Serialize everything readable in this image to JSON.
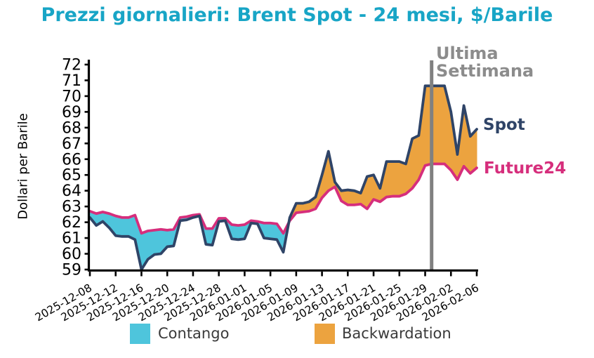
{
  "title": "Prezzi giornalieri: Brent Spot - 24 mesi, $/Barile",
  "ylabel": "Dollari per Barile",
  "annotations": {
    "vline_label_line1": "Ultima",
    "vline_label_line2": "Settimana"
  },
  "legend": {
    "contango": "Contango",
    "backwardation": "Backwardation"
  },
  "colors": {
    "title": "#18a5c6",
    "spot_line": "#2f4467",
    "future_line": "#d62e7c",
    "contango_fill": "#4ec5dc",
    "backwardation_fill": "#eca33f",
    "vline": "#808080",
    "vline_label": "#8c8c8c",
    "legend_text": "#3a3a3a",
    "axis": "#000000"
  },
  "chart_data": {
    "type": "area",
    "title": "Prezzi giornalieri: Brent Spot - 24 mesi, $/Barile",
    "xlabel": "",
    "ylabel": "Dollari per Barile",
    "ylim": [
      59,
      72
    ],
    "grid": false,
    "y_ticks": [
      59,
      60,
      61,
      62,
      63,
      64,
      65,
      66,
      67,
      68,
      69,
      70,
      71,
      72
    ],
    "x_ticks": [
      {
        "day": 0,
        "label": "2025-12-08"
      },
      {
        "day": 4,
        "label": "2025-12-12"
      },
      {
        "day": 8,
        "label": "2025-12-16"
      },
      {
        "day": 12,
        "label": "2025-12-20"
      },
      {
        "day": 16,
        "label": "2025-12-24"
      },
      {
        "day": 20,
        "label": "2025-12-28"
      },
      {
        "day": 24,
        "label": "2026-01-01"
      },
      {
        "day": 28,
        "label": "2026-01-05"
      },
      {
        "day": 32,
        "label": "2026-01-09"
      },
      {
        "day": 36,
        "label": "2026-01-13"
      },
      {
        "day": 40,
        "label": "2026-01-17"
      },
      {
        "day": 44,
        "label": "2026-01-21"
      },
      {
        "day": 48,
        "label": "2026-01-25"
      },
      {
        "day": 52,
        "label": "2026-01-29"
      },
      {
        "day": 56,
        "label": "2026-02-02"
      },
      {
        "day": 60,
        "label": "2026-02-06"
      }
    ],
    "vline_day_index": 53,
    "fill_legend": {
      "contango": "Contango",
      "backwardation": "Backwardation"
    },
    "series": [
      {
        "name": "Spot",
        "values": [
          62.3,
          61.8,
          62.05,
          61.65,
          61.15,
          61.1,
          61.1,
          60.9,
          59.0,
          59.65,
          59.95,
          60.0,
          60.45,
          60.5,
          62.1,
          62.15,
          62.3,
          62.4,
          60.6,
          60.55,
          62.05,
          62.1,
          60.95,
          60.9,
          60.95,
          61.95,
          61.9,
          61.0,
          60.95,
          60.9,
          60.1,
          62.3,
          63.2,
          63.2,
          63.3,
          63.6,
          65.0,
          66.5,
          64.55,
          64.0,
          64.05,
          64.0,
          63.85,
          64.9,
          65.0,
          64.15,
          65.85,
          65.85,
          65.85,
          65.7,
          67.3,
          67.5,
          70.65,
          70.65,
          70.65,
          70.65,
          69.0,
          66.3,
          69.4,
          67.45,
          67.9
        ]
      },
      {
        "name": "Future24",
        "values": [
          62.7,
          62.55,
          62.65,
          62.55,
          62.4,
          62.3,
          62.3,
          62.45,
          61.3,
          61.45,
          61.5,
          61.55,
          61.5,
          61.55,
          62.3,
          62.35,
          62.45,
          62.5,
          61.6,
          61.6,
          62.25,
          62.25,
          61.85,
          61.8,
          61.85,
          62.1,
          62.05,
          61.95,
          61.95,
          61.9,
          61.3,
          62.1,
          62.6,
          62.65,
          62.7,
          62.85,
          63.55,
          64.0,
          64.25,
          63.35,
          63.1,
          63.1,
          63.15,
          62.85,
          63.45,
          63.3,
          63.6,
          63.65,
          63.65,
          63.8,
          64.15,
          64.7,
          65.6,
          65.7,
          65.7,
          65.7,
          65.3,
          64.7,
          65.55,
          65.1,
          65.45
        ]
      }
    ]
  }
}
